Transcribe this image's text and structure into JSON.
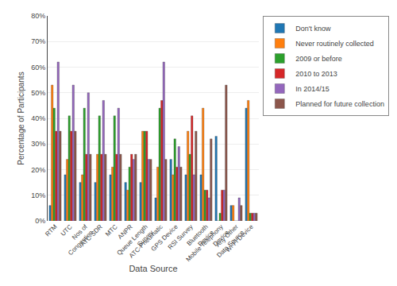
{
  "chart_data": {
    "type": "bar",
    "xlabel": "Data Source",
    "ylabel": "Percentage of Participants",
    "categories": [
      "RTM",
      "UTC",
      "Nos of\nCongestion",
      "ATC-SDR",
      "MTC",
      "ANPR",
      "Queue Length\nSurvey",
      "ATC-Pneumatic",
      "GPS Device",
      "RSI Survey",
      "Bluetooth\nDevice",
      "Mobile Telephony\nDevice",
      "Any Other\nData Source",
      "Wi-Fi Device"
    ],
    "series": [
      {
        "name": "Don't know",
        "values": [
          6,
          18,
          15,
          15,
          18,
          15,
          15,
          9,
          24,
          18,
          18,
          33,
          6,
          44
        ]
      },
      {
        "name": "Never routinely collected",
        "values": [
          53,
          24,
          18,
          26,
          21,
          12,
          35,
          21,
          18,
          35,
          44,
          0,
          6,
          47
        ]
      },
      {
        "name": "2009 or before",
        "values": [
          44,
          41,
          44,
          41,
          41,
          21,
          35,
          44,
          32,
          26,
          12,
          3,
          0,
          3
        ]
      },
      {
        "name": "2010 to 2013",
        "values": [
          35,
          35,
          26,
          26,
          26,
          26,
          35,
          47,
          21,
          41,
          12,
          12,
          0,
          3
        ]
      },
      {
        "name": "In 2014/15",
        "values": [
          62,
          53,
          50,
          47,
          44,
          24,
          24,
          62,
          29,
          18,
          9,
          12,
          9,
          3
        ]
      },
      {
        "name": "Planned for future collection",
        "values": [
          35,
          35,
          26,
          26,
          26,
          26,
          24,
          24,
          21,
          35,
          32,
          53,
          6,
          3
        ]
      }
    ],
    "ylim": [
      0,
      80
    ],
    "yticks": [
      {
        "value": 0,
        "label": "0%"
      },
      {
        "value": 10,
        "label": "10%"
      },
      {
        "value": 20,
        "label": "20%"
      },
      {
        "value": 30,
        "label": "30%"
      },
      {
        "value": 40,
        "label": "40%"
      },
      {
        "value": 50,
        "label": "50%"
      },
      {
        "value": 60,
        "label": "60%"
      },
      {
        "value": 70,
        "label": "70%"
      },
      {
        "value": 80,
        "label": "80%"
      }
    ],
    "grid": true,
    "legend": "upper right"
  }
}
